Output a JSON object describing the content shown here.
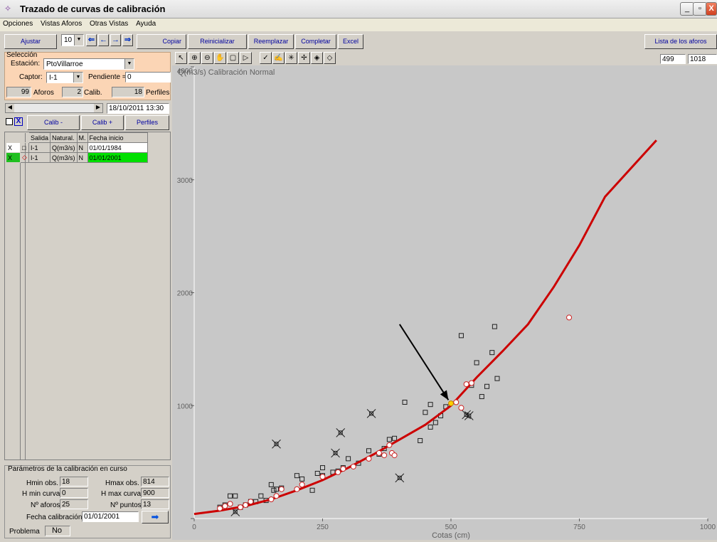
{
  "window": {
    "title": "Trazado de curvas de calibración",
    "min": "_",
    "max": "▫",
    "close": "X"
  },
  "menu": [
    "Opciones",
    "Vistas Aforos",
    "Otras Vistas",
    "Ayuda"
  ],
  "toolbar": {
    "ajustar": "Ajustar",
    "num": "10",
    "copiar": "Copiar",
    "reinicializar": "Reinicializar",
    "reemplazar": "Reemplazar",
    "completar": "Completar",
    "excel": "Excel",
    "lista": "Lista de los aforos",
    "arrows": [
      "⇐",
      "←",
      "→",
      "⇒"
    ]
  },
  "seleccion": {
    "title": "Selección",
    "estacion_label": "Estación:",
    "estacion": "PtoVillarroe",
    "captor_label": "Captor:",
    "captor": "I-1",
    "pendiente_label": "Pendiente =",
    "pendiente": "0",
    "aforos_count": "99",
    "aforos_label": "Aforos",
    "calib_count": "2",
    "calib_label": "Calib.",
    "perfiles_count": "18",
    "perfiles_label": "Perfiles"
  },
  "scroll_date": "18/10/2011 13:30",
  "calib_buttons": {
    "minus": "Calib -",
    "plus": "Calib +",
    "perfiles": "Perfiles"
  },
  "grid": {
    "headers": [
      "Salida",
      "Natural.",
      "M.",
      "Fecha inicio"
    ],
    "rows": [
      {
        "check": "X",
        "salida": "I-1",
        "natural": "Q(m3/s)",
        "m": "N",
        "fecha": "01/01/1984",
        "selected": false
      },
      {
        "check": "X",
        "salida": "I-1",
        "natural": "Q(m3/s)",
        "m": "N",
        "fecha": "01/01/2001",
        "selected": true
      }
    ]
  },
  "params": {
    "title": "Parámetros de la calibración en curso",
    "hmin_obs_label": "Hmin obs.",
    "hmin_obs": "18",
    "hmax_obs_label": "Hmax obs.",
    "hmax_obs": "814",
    "hmin_curva_label": "H min curva",
    "hmin_curva": "0",
    "hmax_curva_label": "H max curva",
    "hmax_curva": "900",
    "n_aforos_label": "Nº aforos",
    "n_aforos": "25",
    "n_puntos_label": "Nº puntos",
    "n_puntos": "13",
    "fecha_label": "Fecha calibración",
    "fecha": "01/01/2001",
    "problema_label": "Problema",
    "problema": "No"
  },
  "coords": {
    "x": "499",
    "y": "1018"
  },
  "chart_data": {
    "type": "scatter",
    "title": "Q(m3/s)   Calibración Normal",
    "xlabel": "Cotas (cm)",
    "ylabel": "",
    "xlim": [
      0,
      1000
    ],
    "ylim": [
      0,
      4000
    ],
    "xticks": [
      0,
      250,
      500,
      750,
      1000
    ],
    "yticks": [
      1000,
      2000,
      3000,
      4000
    ],
    "curve_color": "#cc0000",
    "curve": [
      [
        0,
        40
      ],
      [
        50,
        70
      ],
      [
        100,
        110
      ],
      [
        150,
        170
      ],
      [
        200,
        250
      ],
      [
        250,
        340
      ],
      [
        300,
        450
      ],
      [
        350,
        570
      ],
      [
        400,
        700
      ],
      [
        450,
        830
      ],
      [
        500,
        1000
      ],
      [
        550,
        1250
      ],
      [
        600,
        1480
      ],
      [
        650,
        1720
      ],
      [
        700,
        2050
      ],
      [
        750,
        2420
      ],
      [
        800,
        2850
      ],
      [
        900,
        3350
      ]
    ],
    "aforos_squares": [
      [
        50,
        100
      ],
      [
        60,
        120
      ],
      [
        70,
        200
      ],
      [
        80,
        200
      ],
      [
        90,
        100
      ],
      [
        100,
        120
      ],
      [
        110,
        150
      ],
      [
        120,
        150
      ],
      [
        130,
        200
      ],
      [
        140,
        160
      ],
      [
        150,
        300
      ],
      [
        155,
        250
      ],
      [
        160,
        260
      ],
      [
        170,
        270
      ],
      [
        200,
        380
      ],
      [
        210,
        350
      ],
      [
        230,
        250
      ],
      [
        240,
        400
      ],
      [
        250,
        450
      ],
      [
        250,
        380
      ],
      [
        270,
        410
      ],
      [
        280,
        420
      ],
      [
        290,
        450
      ],
      [
        300,
        530
      ],
      [
        320,
        490
      ],
      [
        340,
        600
      ],
      [
        360,
        570
      ],
      [
        370,
        620
      ],
      [
        380,
        700
      ],
      [
        390,
        710
      ],
      [
        410,
        1030
      ],
      [
        440,
        690
      ],
      [
        450,
        940
      ],
      [
        460,
        810
      ],
      [
        460,
        1010
      ],
      [
        470,
        850
      ],
      [
        480,
        910
      ],
      [
        490,
        990
      ],
      [
        520,
        1620
      ],
      [
        540,
        1180
      ],
      [
        550,
        1380
      ],
      [
        560,
        1080
      ],
      [
        570,
        1170
      ],
      [
        580,
        1470
      ],
      [
        590,
        1240
      ],
      [
        585,
        1700
      ]
    ],
    "aforos_circles": [
      [
        50,
        90
      ],
      [
        60,
        110
      ],
      [
        70,
        130
      ],
      [
        90,
        100
      ],
      [
        100,
        120
      ],
      [
        110,
        150
      ],
      [
        150,
        170
      ],
      [
        160,
        200
      ],
      [
        170,
        260
      ],
      [
        200,
        260
      ],
      [
        210,
        300
      ],
      [
        250,
        370
      ],
      [
        280,
        410
      ],
      [
        290,
        440
      ],
      [
        310,
        460
      ],
      [
        340,
        530
      ],
      [
        360,
        580
      ],
      [
        370,
        560
      ],
      [
        380,
        650
      ],
      [
        385,
        580
      ],
      [
        390,
        560
      ],
      [
        510,
        1030
      ],
      [
        520,
        980
      ],
      [
        530,
        1190
      ],
      [
        540,
        1200
      ],
      [
        730,
        1780
      ]
    ],
    "crossed_points": [
      [
        80,
        60
      ],
      [
        160,
        660
      ],
      [
        275,
        580
      ],
      [
        285,
        760
      ],
      [
        345,
        930
      ],
      [
        400,
        360
      ],
      [
        530,
        920
      ],
      [
        535,
        910
      ]
    ],
    "highlight_point": [
      500,
      1020
    ],
    "annotation_arrow": {
      "from": [
        400,
        1720
      ],
      "to": [
        495,
        1050
      ]
    }
  }
}
